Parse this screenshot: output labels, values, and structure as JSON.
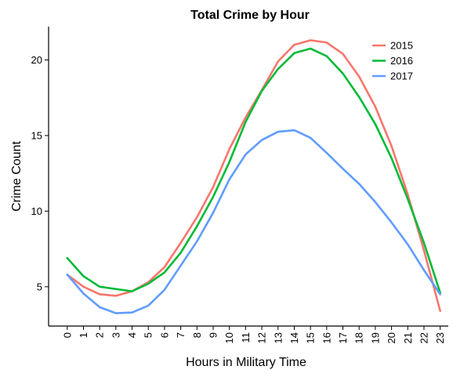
{
  "chart_data": {
    "type": "line",
    "title": "Total Crime by Hour",
    "xlabel": "Hours in Military Time",
    "ylabel": "Crime Count",
    "x": [
      0,
      1,
      2,
      3,
      4,
      5,
      6,
      7,
      8,
      9,
      10,
      11,
      12,
      13,
      14,
      15,
      16,
      17,
      18,
      19,
      20,
      21,
      22,
      23
    ],
    "x_tick_labels": [
      "0",
      "1",
      "2",
      "3",
      "4",
      "5",
      "6",
      "7",
      "8",
      "9",
      "10",
      "11",
      "12",
      "13",
      "14",
      "15",
      "16",
      "17",
      "18",
      "19",
      "20",
      "21",
      "22",
      "23"
    ],
    "y_ticks": [
      5,
      10,
      15,
      20
    ],
    "y_tick_labels": [
      "5",
      "10",
      "15",
      "20"
    ],
    "xlim": [
      -1.15,
      23.5
    ],
    "ylim": [
      2.4,
      22.2
    ],
    "grid": false,
    "legend_position": "top-right",
    "series": [
      {
        "name": "2015",
        "color": "#F8766D",
        "values": [
          5.8,
          5.0,
          4.5,
          4.4,
          4.7,
          5.3,
          6.3,
          7.9,
          9.6,
          11.6,
          14.1,
          16.2,
          18.0,
          19.9,
          21.0,
          21.3,
          21.15,
          20.4,
          18.9,
          16.9,
          14.3,
          11.1,
          7.4,
          3.4
        ]
      },
      {
        "name": "2016",
        "color": "#00BA38",
        "values": [
          6.9,
          5.7,
          5.0,
          4.85,
          4.7,
          5.2,
          5.95,
          7.25,
          9.0,
          10.95,
          13.25,
          15.9,
          17.95,
          19.4,
          20.45,
          20.75,
          20.25,
          19.1,
          17.55,
          15.75,
          13.5,
          10.8,
          7.9,
          4.6
        ]
      },
      {
        "name": "2017",
        "color": "#619CFF",
        "values": [
          5.8,
          4.55,
          3.65,
          3.25,
          3.3,
          3.75,
          4.8,
          6.4,
          8.0,
          9.9,
          12.1,
          13.75,
          14.7,
          15.25,
          15.35,
          14.85,
          13.85,
          12.8,
          11.8,
          10.6,
          9.25,
          7.8,
          6.1,
          4.5
        ]
      }
    ]
  }
}
